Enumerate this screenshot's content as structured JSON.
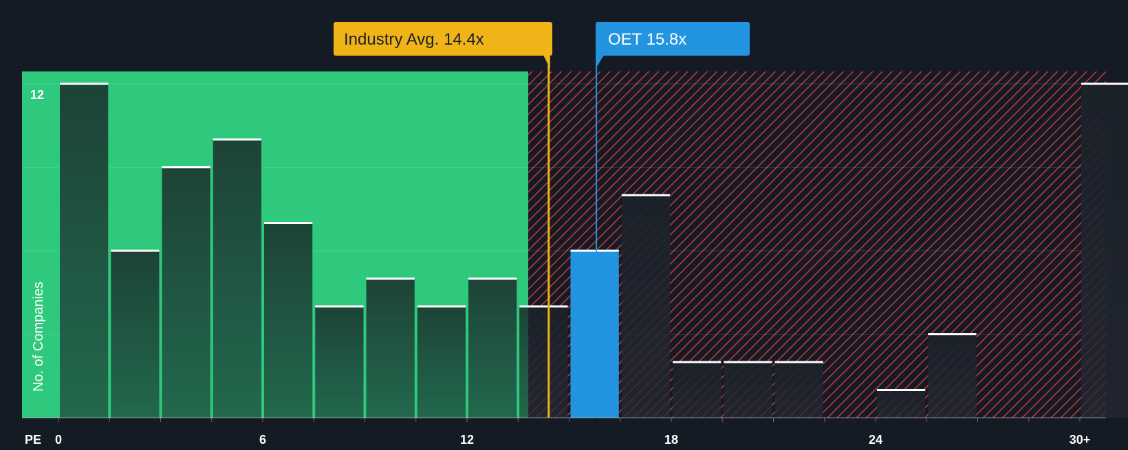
{
  "chart_data": {
    "type": "bar",
    "x_axis_label": "PE",
    "y_axis_label": "No. of Companies",
    "y_tick_label": "12",
    "y_max_label_value": 12,
    "x_ticks": [
      "0",
      "6",
      "12",
      "18",
      "24",
      "30+"
    ],
    "x_tick_values": [
      0,
      6,
      12,
      18,
      24,
      30
    ],
    "xlim": [
      0,
      30.0
    ],
    "ylim": [
      0,
      12.4
    ],
    "grid": true,
    "bin_width": 1.5,
    "bins": [
      {
        "start": 0.0,
        "value": 12
      },
      {
        "start": 1.5,
        "value": 6
      },
      {
        "start": 3.0,
        "value": 9
      },
      {
        "start": 4.5,
        "value": 10
      },
      {
        "start": 6.0,
        "value": 7
      },
      {
        "start": 7.5,
        "value": 4
      },
      {
        "start": 9.0,
        "value": 5
      },
      {
        "start": 10.5,
        "value": 4
      },
      {
        "start": 12.0,
        "value": 5
      },
      {
        "start": 13.5,
        "value": 4
      },
      {
        "start": 15.0,
        "value": 6,
        "highlight": true
      },
      {
        "start": 16.5,
        "value": 8
      },
      {
        "start": 18.0,
        "value": 2
      },
      {
        "start": 19.5,
        "value": 2
      },
      {
        "start": 21.0,
        "value": 2
      },
      {
        "start": 22.5,
        "value": 0
      },
      {
        "start": 24.0,
        "value": 1
      },
      {
        "start": 25.5,
        "value": 3
      },
      {
        "start": 27.0,
        "value": 0
      },
      {
        "start": 28.5,
        "value": 0
      },
      {
        "start": 30.0,
        "value": 12
      }
    ],
    "fair_zone_end": 13.8,
    "industry_avg": {
      "label": "Industry Avg. 14.4x",
      "value": 14.4
    },
    "company": {
      "label": "OET 15.8x",
      "value": 15.8
    },
    "colors": {
      "background": "#151b24",
      "fair_zone": "#2ec97c",
      "bar_fair": "#1e4a3b",
      "bar_over": "#1a2129",
      "bar_highlight": "#2394e0",
      "hatch_red": "#c9393f",
      "industry_marker": "#f0b318",
      "company_marker": "#2394e0",
      "cap": "#ffffff",
      "axis_text": "#ffffff"
    }
  }
}
